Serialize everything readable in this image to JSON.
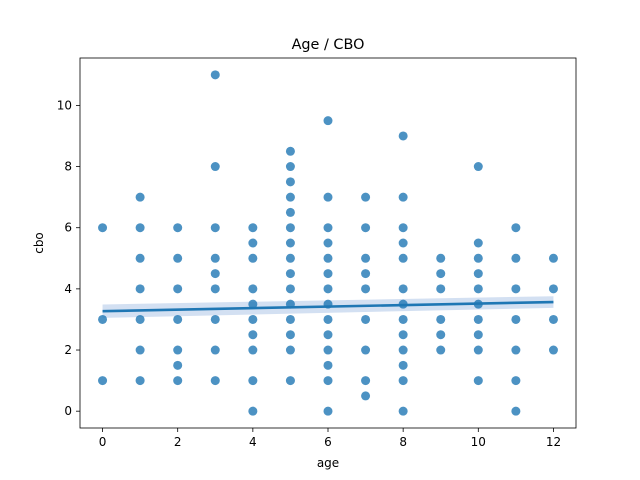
{
  "chart_data": {
    "type": "scatter",
    "title": "Age / CBO",
    "xlabel": "age",
    "ylabel": "cbo",
    "xlim": [
      -0.6,
      12.6
    ],
    "ylim": [
      -0.55,
      11.55
    ],
    "xticks": [
      0,
      2,
      4,
      6,
      8,
      10,
      12
    ],
    "yticks": [
      0,
      2,
      4,
      6,
      8,
      10
    ],
    "grid": false,
    "colors": {
      "points": "#1f77b4",
      "regression_line": "#1f77b4",
      "confidence_band": "#aec7e8"
    },
    "series": [
      {
        "points": [
          [
            0,
            6
          ],
          [
            0,
            3
          ],
          [
            0,
            1
          ],
          [
            1,
            7
          ],
          [
            1,
            6
          ],
          [
            1,
            5
          ],
          [
            1,
            4
          ],
          [
            1,
            3
          ],
          [
            1,
            2
          ],
          [
            1,
            1
          ],
          [
            2,
            6
          ],
          [
            2,
            5
          ],
          [
            2,
            4
          ],
          [
            2,
            3
          ],
          [
            2,
            2
          ],
          [
            2,
            1.5
          ],
          [
            2,
            1
          ],
          [
            3,
            11
          ],
          [
            3,
            8
          ],
          [
            3,
            6
          ],
          [
            3,
            5
          ],
          [
            3,
            4.5
          ],
          [
            3,
            4
          ],
          [
            3,
            3
          ],
          [
            3,
            2
          ],
          [
            3,
            1
          ],
          [
            4,
            6
          ],
          [
            4,
            5.5
          ],
          [
            4,
            5
          ],
          [
            4,
            4
          ],
          [
            4,
            3.5
          ],
          [
            4,
            3
          ],
          [
            4,
            2.5
          ],
          [
            4,
            2
          ],
          [
            4,
            1
          ],
          [
            4,
            0
          ],
          [
            5,
            8.5
          ],
          [
            5,
            8
          ],
          [
            5,
            7.5
          ],
          [
            5,
            7
          ],
          [
            5,
            6.5
          ],
          [
            5,
            6
          ],
          [
            5,
            5.5
          ],
          [
            5,
            5
          ],
          [
            5,
            4.5
          ],
          [
            5,
            4
          ],
          [
            5,
            3.5
          ],
          [
            5,
            3
          ],
          [
            5,
            2.5
          ],
          [
            5,
            2
          ],
          [
            5,
            1
          ],
          [
            6,
            9.5
          ],
          [
            6,
            7
          ],
          [
            6,
            6
          ],
          [
            6,
            5.5
          ],
          [
            6,
            5
          ],
          [
            6,
            4.5
          ],
          [
            6,
            4
          ],
          [
            6,
            3.5
          ],
          [
            6,
            3
          ],
          [
            6,
            2.5
          ],
          [
            6,
            2
          ],
          [
            6,
            1.5
          ],
          [
            6,
            1
          ],
          [
            6,
            0
          ],
          [
            7,
            7
          ],
          [
            7,
            6
          ],
          [
            7,
            5
          ],
          [
            7,
            4.5
          ],
          [
            7,
            4
          ],
          [
            7,
            3
          ],
          [
            7,
            2
          ],
          [
            7,
            1
          ],
          [
            7,
            0.5
          ],
          [
            8,
            9
          ],
          [
            8,
            7
          ],
          [
            8,
            6
          ],
          [
            8,
            5.5
          ],
          [
            8,
            5
          ],
          [
            8,
            4
          ],
          [
            8,
            3.5
          ],
          [
            8,
            3
          ],
          [
            8,
            2.5
          ],
          [
            8,
            2
          ],
          [
            8,
            1.5
          ],
          [
            8,
            1
          ],
          [
            8,
            0
          ],
          [
            9,
            5
          ],
          [
            9,
            4.5
          ],
          [
            9,
            4
          ],
          [
            9,
            3
          ],
          [
            9,
            2.5
          ],
          [
            9,
            2
          ],
          [
            10,
            8
          ],
          [
            10,
            5.5
          ],
          [
            10,
            5
          ],
          [
            10,
            4.5
          ],
          [
            10,
            4
          ],
          [
            10,
            3.5
          ],
          [
            10,
            3
          ],
          [
            10,
            2.5
          ],
          [
            10,
            2
          ],
          [
            10,
            1
          ],
          [
            11,
            6
          ],
          [
            11,
            5
          ],
          [
            11,
            4
          ],
          [
            11,
            3
          ],
          [
            11,
            2
          ],
          [
            11,
            1
          ],
          [
            11,
            0
          ],
          [
            12,
            5
          ],
          [
            12,
            4
          ],
          [
            12,
            3
          ],
          [
            12,
            2
          ]
        ]
      }
    ],
    "regression": {
      "x": [
        0,
        12
      ],
      "y": [
        3.27,
        3.57
      ],
      "ci_lower": [
        3.05,
        3.38
      ],
      "ci_upper": [
        3.49,
        3.76
      ]
    }
  }
}
